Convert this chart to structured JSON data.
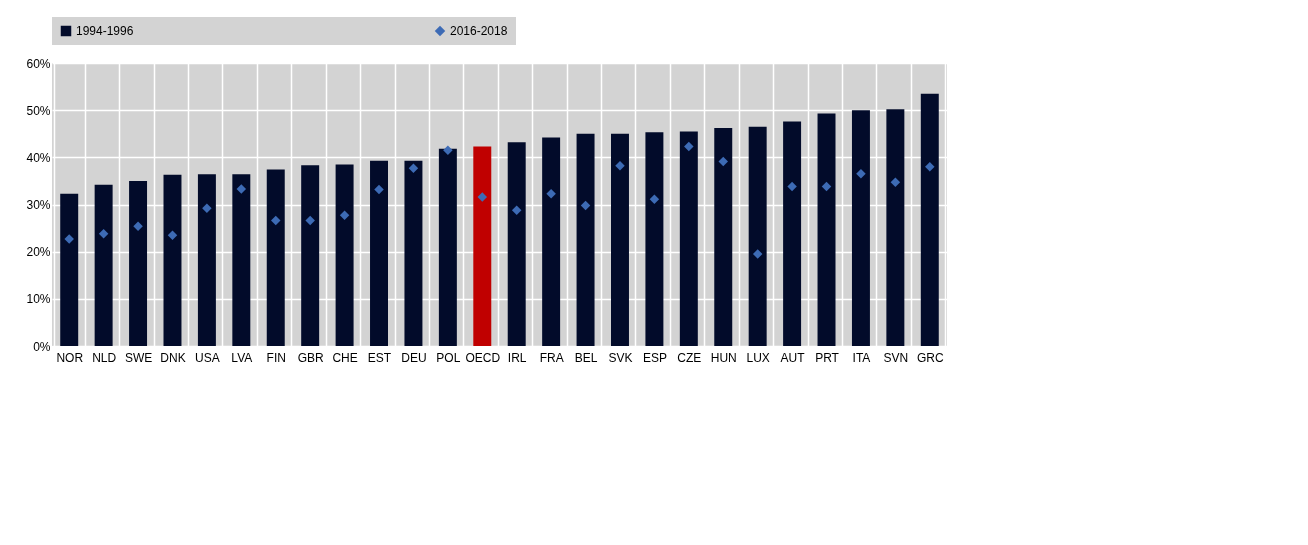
{
  "chart_data": {
    "type": "bar",
    "categories": [
      "NOR",
      "NLD",
      "SWE",
      "DNK",
      "USA",
      "LVA",
      "FIN",
      "GBR",
      "CHE",
      "EST",
      "DEU",
      "POL",
      "OECD",
      "IRL",
      "FRA",
      "BEL",
      "SVK",
      "ESP",
      "CZE",
      "HUN",
      "LUX",
      "AUT",
      "PRT",
      "ITA",
      "SVN",
      "GRC"
    ],
    "series": [
      {
        "name": "1994-1996",
        "color": "#020b2a",
        "colors": [
          "#020b2a",
          "#020b2a",
          "#020b2a",
          "#020b2a",
          "#020b2a",
          "#020b2a",
          "#020b2a",
          "#020b2a",
          "#020b2a",
          "#020b2a",
          "#020b2a",
          "#020b2a",
          "#c00000",
          "#020b2a",
          "#020b2a",
          "#020b2a",
          "#020b2a",
          "#020b2a",
          "#020b2a",
          "#020b2a",
          "#020b2a",
          "#020b2a",
          "#020b2a",
          "#020b2a",
          "#020b2a",
          "#020b2a"
        ],
        "values": [
          32.3,
          34.2,
          35,
          36.3,
          36.4,
          36.4,
          37.4,
          38.3,
          38.5,
          39.3,
          39.3,
          41.8,
          42.3,
          43.2,
          44.2,
          45,
          45,
          45.3,
          45.5,
          46.2,
          46.5,
          47.6,
          49.3,
          50,
          50.2,
          53.5
        ]
      },
      {
        "name": "2016-2018",
        "type": "scatter",
        "marker": "diamond",
        "color": "#3d6bb5",
        "values": [
          22.7,
          23.8,
          25.4,
          23.5,
          29.2,
          33.3,
          26.6,
          26.6,
          27.7,
          33.2,
          37.7,
          41.5,
          31.6,
          28.8,
          32.3,
          29.8,
          38.2,
          31.1,
          42.3,
          39.1,
          19.5,
          33.8,
          33.8,
          36.5,
          34.7,
          38
        ]
      }
    ],
    "ylim": [
      0,
      60
    ],
    "yticks": [
      {
        "value": 0,
        "label": "0%"
      },
      {
        "value": 10,
        "label": "10%"
      },
      {
        "value": 20,
        "label": "20%"
      },
      {
        "value": 30,
        "label": "30%"
      },
      {
        "value": 40,
        "label": "40%"
      },
      {
        "value": 50,
        "label": "50%"
      },
      {
        "value": 60,
        "label": "60%"
      }
    ],
    "grid": true,
    "legend": "top"
  }
}
